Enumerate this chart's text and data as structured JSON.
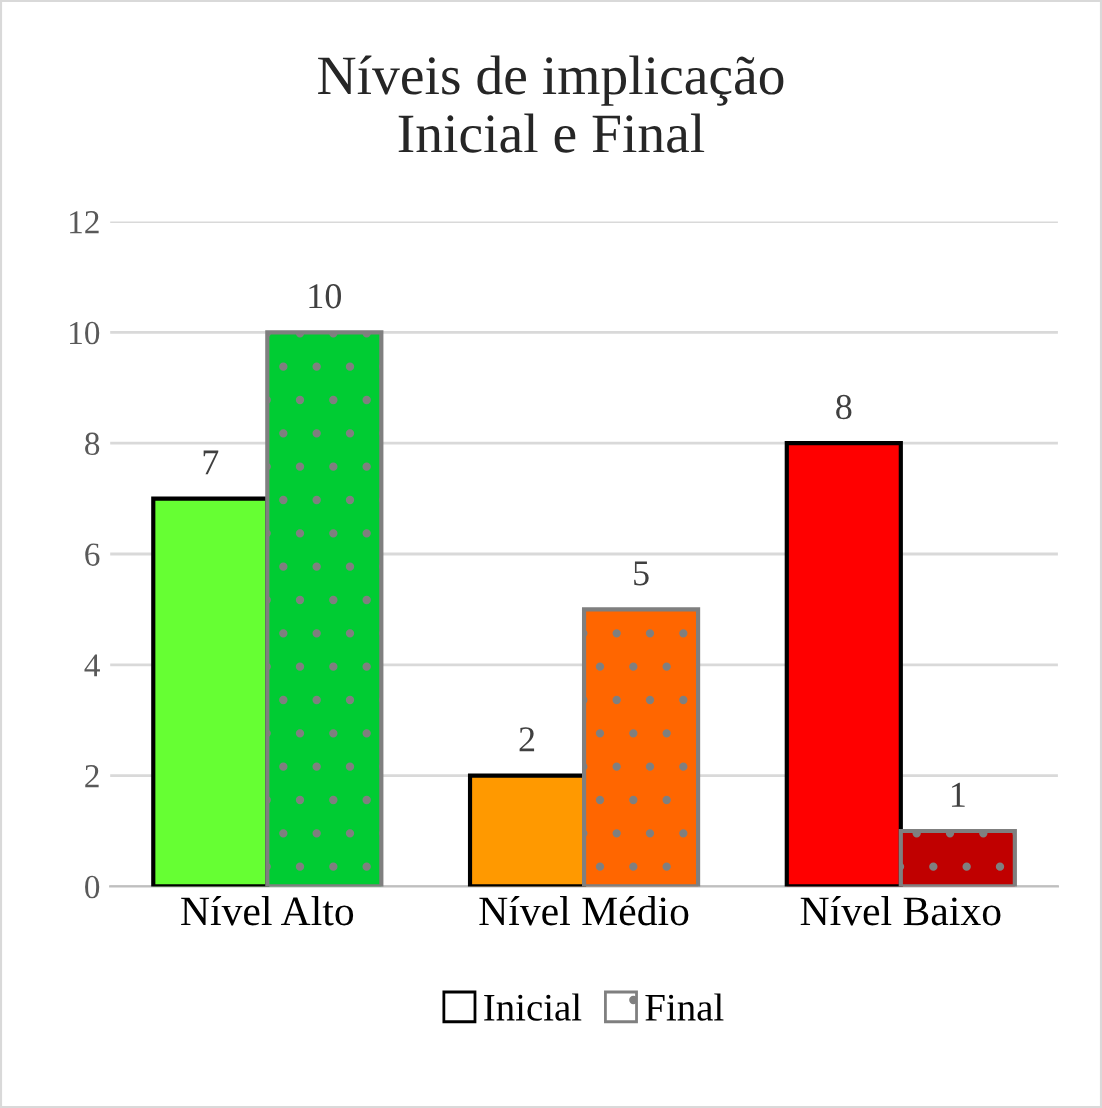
{
  "chart_data": {
    "type": "bar",
    "title": "Níveis de implicação\nInicial e Final",
    "categories": [
      "Nível Alto",
      "Nível Médio",
      "Nível Baixo"
    ],
    "series": [
      {
        "name": "Inicial",
        "colors": [
          "#66ff33",
          "#ff9900",
          "#ff0000"
        ],
        "values": [
          7,
          2,
          8
        ]
      },
      {
        "name": "Final",
        "colors": [
          "#00cc33",
          "#ff6600",
          "#c00000"
        ],
        "values": [
          10,
          5,
          1
        ]
      }
    ],
    "ylim": [
      0,
      12
    ],
    "yticks": [
      0,
      2,
      4,
      6,
      8,
      10,
      12
    ],
    "grid": "y",
    "legend": "bottom",
    "data_labels": true
  }
}
